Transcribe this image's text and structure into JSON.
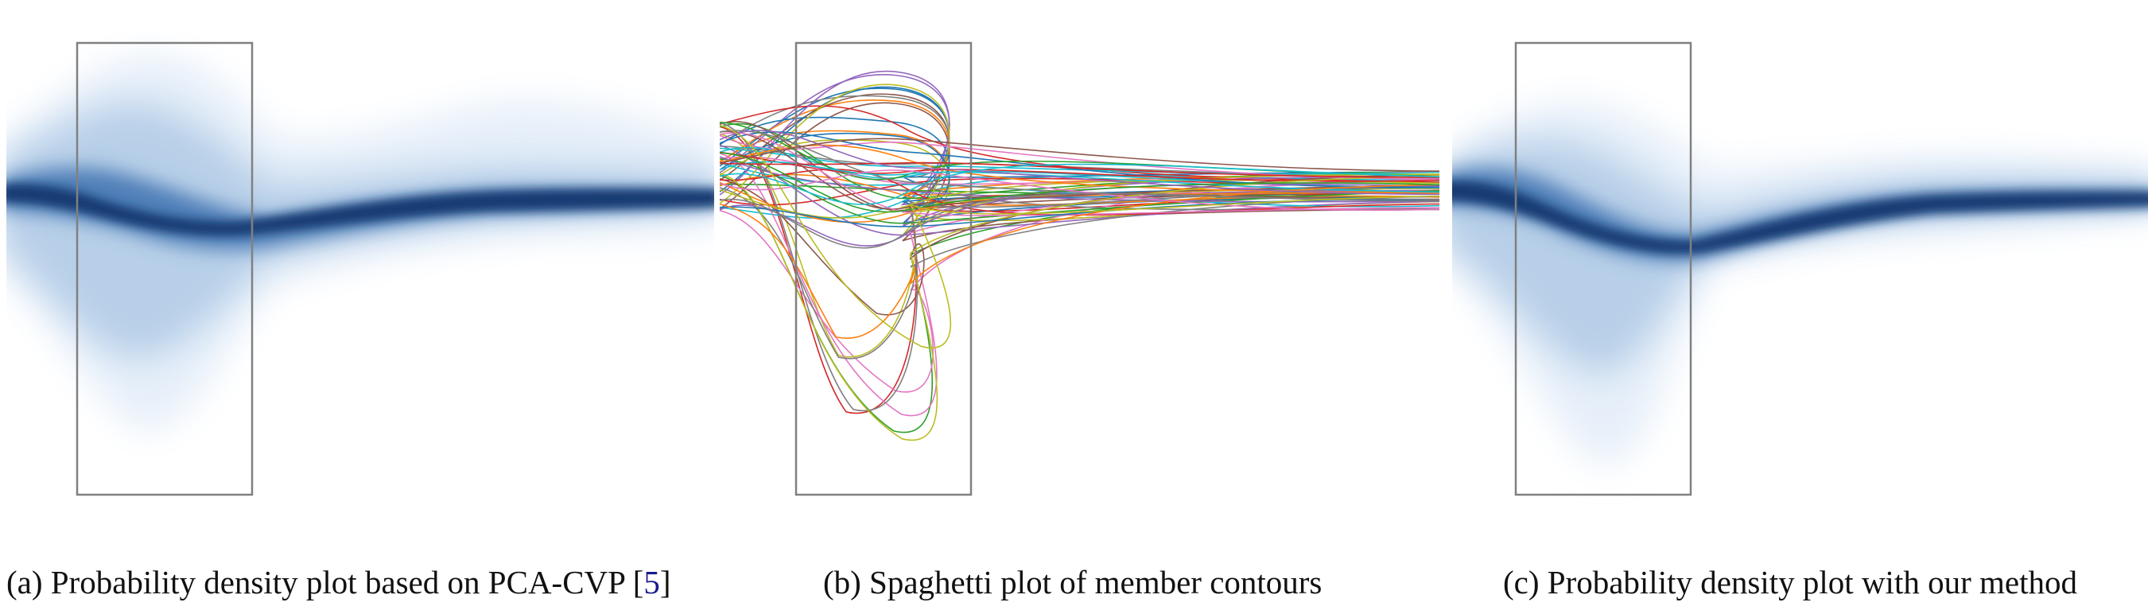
{
  "captions": {
    "a": {
      "text": "(a) Probability density plot based on PCA-CVP [",
      "cite": "5",
      "close": "]"
    },
    "b": {
      "text": "(b) Spaghetti plot of member contours"
    },
    "c": {
      "text": "(c) Probability density plot with our method"
    }
  },
  "colors": {
    "density_dark": "#173a72",
    "density_light": "#e8f1fa",
    "box_stroke": "#808080",
    "spaghetti_palette": [
      "#1f77b4",
      "#ff7f0e",
      "#2ca02c",
      "#d62728",
      "#9467bd",
      "#8c564b",
      "#e377c2",
      "#7f7f7f",
      "#bcbd22",
      "#17becf"
    ]
  },
  "spaghetti": {
    "member_count": 60
  }
}
